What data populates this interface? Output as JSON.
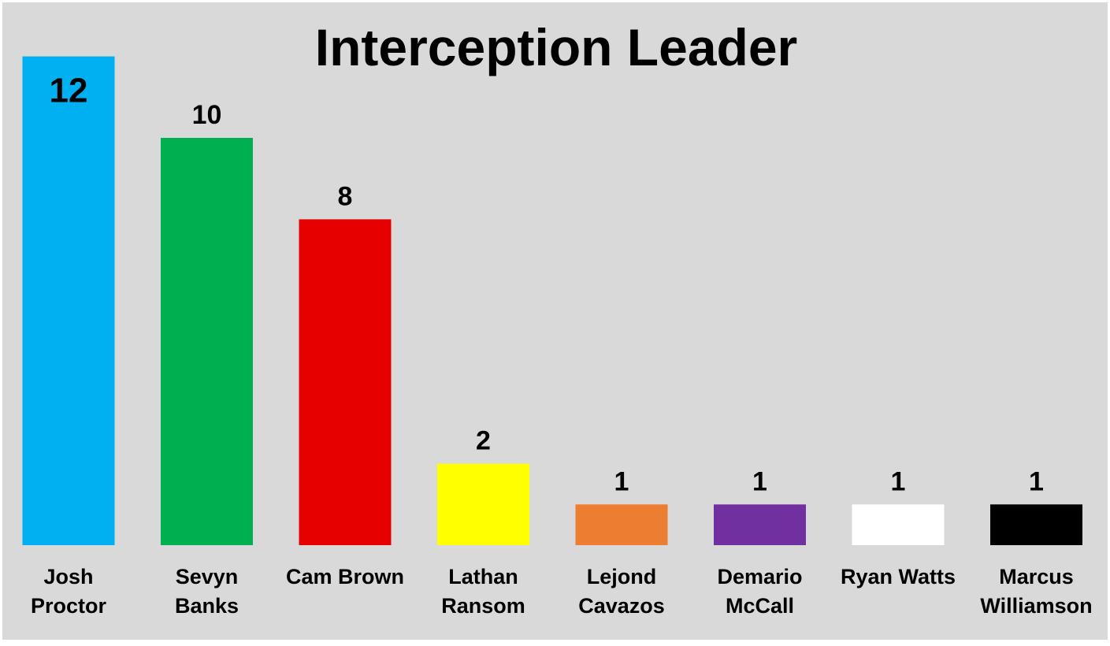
{
  "chart_data": {
    "type": "bar",
    "title": "Interception Leader",
    "xlabel": "",
    "ylabel": "",
    "ylim": [
      0,
      12
    ],
    "grid": false,
    "legend": "none",
    "background": "#d9d9d9",
    "categories": [
      [
        "Josh",
        "Proctor"
      ],
      [
        "Sevyn",
        "Banks"
      ],
      [
        "Cam Brown"
      ],
      [
        "Lathan",
        "Ransom"
      ],
      [
        "Lejond",
        "Cavazos"
      ],
      [
        "Demario",
        "McCall"
      ],
      [
        "Ryan Watts"
      ],
      [
        "Marcus",
        "Williamson"
      ]
    ],
    "values": [
      12,
      10,
      8,
      2,
      1,
      1,
      1,
      1
    ],
    "value_labels": [
      "12",
      "10",
      "8",
      "2",
      "1",
      "1",
      "1",
      "1"
    ],
    "colors": [
      "#00b0f0",
      "#00b050",
      "#e60000",
      "#ffff00",
      "#ed7d31",
      "#7030a0",
      "#ffffff",
      "#000000"
    ]
  }
}
